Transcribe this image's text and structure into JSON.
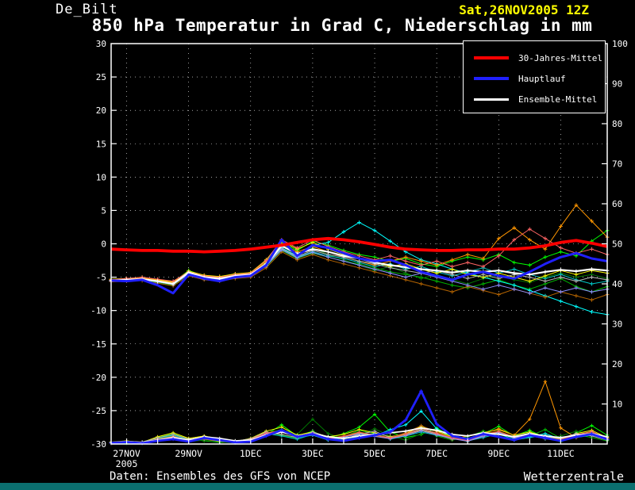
{
  "header": {
    "station": "De_Bilt",
    "run": "Sat,26NOV2005 12Z",
    "title": "850 hPa Temperatur in Grad C, Niederschlag in mm"
  },
  "footer": {
    "source": "Daten: Ensembles des GFS von NCEP",
    "brand": "Wetterzentrale"
  },
  "chart_data": {
    "type": "line",
    "title": "850 hPa Temperatur in Grad C, Niederschlag in mm",
    "x_step_hours": 12,
    "x_total_hours": 384,
    "x_ticks": [
      {
        "t": 12,
        "label": "27NOV",
        "sublabel": "2005"
      },
      {
        "t": 60,
        "label": "29NOV"
      },
      {
        "t": 108,
        "label": "1DEC"
      },
      {
        "t": 156,
        "label": "3DEC"
      },
      {
        "t": 204,
        "label": "5DEC"
      },
      {
        "t": 252,
        "label": "7DEC"
      },
      {
        "t": 300,
        "label": "9DEC"
      },
      {
        "t": 348,
        "label": "11DEC"
      }
    ],
    "axes": {
      "left": {
        "min": -30,
        "max": 30,
        "step": 5,
        "labels": [
          30,
          25,
          20,
          15,
          10,
          5,
          0,
          -5,
          -10,
          -15,
          -20,
          -25,
          -30
        ]
      },
      "right": {
        "min": 0,
        "max": 100,
        "step": 10,
        "labels": [
          100,
          90,
          80,
          70,
          60,
          50,
          40,
          30,
          20,
          10
        ]
      }
    },
    "legend": [
      {
        "label": "30-Jahres-Mittel",
        "color": "#ff0000"
      },
      {
        "label": "Hauptlauf",
        "color": "#2020ff"
      },
      {
        "label": "Ensemble-Mittel",
        "color": "#ffffff"
      }
    ],
    "temperature": {
      "climate_mean": [
        -0.8,
        -0.9,
        -1.0,
        -1.0,
        -1.1,
        -1.1,
        -1.2,
        -1.1,
        -1.0,
        -0.8,
        -0.5,
        -0.2,
        0.2,
        0.6,
        0.8,
        0.6,
        0.3,
        -0.1,
        -0.5,
        -0.8,
        -0.9,
        -1.0,
        -1.0,
        -0.9,
        -0.9,
        -0.8,
        -0.8,
        -0.6,
        -0.3,
        0.2,
        0.5,
        0.1,
        -0.4
      ],
      "main_run": [
        -5.5,
        -5.6,
        -5.4,
        -6.2,
        -7.4,
        -4.6,
        -5.2,
        -5.6,
        -5.0,
        -4.8,
        -3.2,
        0.6,
        -1.8,
        -0.2,
        -0.6,
        -1.4,
        -2.2,
        -2.6,
        -2.4,
        -3.2,
        -4.2,
        -4.8,
        -5.4,
        -4.6,
        -4.2,
        -4.8,
        -5.2,
        -4.2,
        -3.0,
        -2.0,
        -1.4,
        -2.2,
        -2.6
      ],
      "ensemble_mean": [
        -5.5,
        -5.4,
        -5.3,
        -5.6,
        -6.0,
        -4.3,
        -5.0,
        -5.2,
        -4.8,
        -4.6,
        -3.0,
        -0.3,
        -1.5,
        -0.8,
        -1.2,
        -1.8,
        -2.2,
        -2.8,
        -3.2,
        -3.5,
        -3.8,
        -4.0,
        -4.3,
        -4.0,
        -4.2,
        -4.0,
        -4.4,
        -4.6,
        -4.2,
        -3.9,
        -4.1,
        -3.8,
        -4.0
      ],
      "members": [
        {
          "color": "#00ff00",
          "values": [
            -5.5,
            -5.2,
            -5.0,
            -5.4,
            -5.8,
            -4.0,
            -4.8,
            -5.0,
            -4.6,
            -4.4,
            -2.6,
            0.2,
            -1.0,
            0.4,
            -0.2,
            -1.0,
            -1.6,
            -2.0,
            -2.6,
            -2.2,
            -3.0,
            -3.4,
            -2.6,
            -2.0,
            -2.4,
            -1.6,
            -2.8,
            -3.2,
            -2.0,
            -1.2,
            -1.8,
            0.4,
            2.0
          ]
        },
        {
          "color": "#00b400",
          "values": [
            -5.6,
            -5.5,
            -5.4,
            -5.8,
            -6.2,
            -4.6,
            -5.2,
            -5.4,
            -5.0,
            -4.8,
            -3.4,
            -1.0,
            -2.2,
            -1.4,
            -2.0,
            -2.6,
            -3.0,
            -3.6,
            -4.2,
            -4.6,
            -5.0,
            -5.6,
            -6.2,
            -6.6,
            -6.0,
            -5.4,
            -6.2,
            -6.8,
            -6.0,
            -5.2,
            -6.4,
            -7.2,
            -6.4
          ]
        },
        {
          "color": "#007800",
          "values": [
            -5.4,
            -5.3,
            -5.2,
            -5.5,
            -5.9,
            -4.2,
            -4.9,
            -5.1,
            -4.7,
            -4.5,
            -2.8,
            -0.2,
            -1.4,
            -0.6,
            -1.6,
            -2.4,
            -3.2,
            -4.0,
            -3.4,
            -4.4,
            -5.2,
            -4.6,
            -5.4,
            -6.0,
            -5.2,
            -4.8,
            -5.4,
            -5.8,
            -5.0,
            -4.4,
            -5.0,
            -4.6,
            -5.2
          ]
        },
        {
          "color": "#00ffff",
          "values": [
            -5.5,
            -5.4,
            -5.3,
            -5.7,
            -6.1,
            -4.4,
            -5.0,
            -5.3,
            -4.9,
            -4.7,
            -3.0,
            -0.6,
            -1.8,
            -0.2,
            0.2,
            1.8,
            3.2,
            2.0,
            0.4,
            -1.2,
            -2.4,
            -3.0,
            -3.8,
            -4.4,
            -5.0,
            -5.6,
            -6.2,
            -7.0,
            -7.8,
            -8.6,
            -9.4,
            -10.2,
            -10.6
          ]
        },
        {
          "color": "#00c8c8",
          "values": [
            -5.6,
            -5.4,
            -5.2,
            -5.6,
            -6.0,
            -4.5,
            -5.1,
            -5.2,
            -4.8,
            -4.6,
            -3.2,
            -0.8,
            -2.0,
            -1.2,
            -1.8,
            -2.2,
            -2.8,
            -3.4,
            -3.0,
            -3.8,
            -3.4,
            -4.2,
            -4.8,
            -4.2,
            -3.6,
            -4.4,
            -3.8,
            -4.6,
            -5.2,
            -4.6,
            -5.4,
            -6.0,
            -5.6
          ]
        },
        {
          "color": "#ffff00",
          "values": [
            -5.3,
            -5.2,
            -5.1,
            -5.4,
            -5.7,
            -4.1,
            -4.7,
            -4.9,
            -4.5,
            -4.3,
            -2.4,
            0.4,
            -0.8,
            0.2,
            -0.8,
            -1.6,
            -2.2,
            -2.8,
            -3.4,
            -3.0,
            -3.8,
            -4.4,
            -3.8,
            -4.6,
            -5.0,
            -4.4,
            -5.0,
            -5.6,
            -4.8,
            -4.0,
            -4.6,
            -4.0,
            -4.4
          ]
        },
        {
          "color": "#ff9600",
          "values": [
            -5.4,
            -5.3,
            -5.1,
            -5.5,
            -5.8,
            -4.3,
            -4.9,
            -5.1,
            -4.7,
            -4.5,
            -2.7,
            0.0,
            -1.2,
            -0.4,
            -1.2,
            -2.0,
            -2.6,
            -3.2,
            -2.6,
            -2.0,
            -2.6,
            -3.2,
            -2.4,
            -1.6,
            -2.2,
            0.8,
            2.4,
            0.6,
            -0.8,
            2.6,
            5.8,
            3.4,
            1.0
          ]
        },
        {
          "color": "#b46400",
          "values": [
            -5.7,
            -5.6,
            -5.5,
            -5.9,
            -6.3,
            -4.8,
            -5.4,
            -5.6,
            -5.2,
            -5.0,
            -3.6,
            -1.2,
            -2.4,
            -1.6,
            -2.4,
            -3.0,
            -3.6,
            -4.2,
            -4.8,
            -5.4,
            -6.0,
            -6.6,
            -7.2,
            -6.4,
            -7.0,
            -7.6,
            -6.8,
            -7.4,
            -8.0,
            -7.2,
            -7.8,
            -8.4,
            -7.6
          ]
        },
        {
          "color": "#b4b4b4",
          "values": [
            -5.5,
            -5.4,
            -5.2,
            -5.6,
            -5.9,
            -4.4,
            -5.0,
            -5.2,
            -4.8,
            -4.6,
            -3.1,
            -0.7,
            -1.9,
            -1.0,
            -1.6,
            -2.0,
            -2.6,
            -3.0,
            -3.6,
            -4.0,
            -4.4,
            -4.0,
            -4.6,
            -5.2,
            -4.6,
            -5.2,
            -4.6,
            -5.0,
            -5.6,
            -5.0,
            -5.6,
            -5.0,
            -5.4
          ]
        },
        {
          "color": "#8c8cff",
          "values": [
            -5.6,
            -5.5,
            -5.3,
            -5.7,
            -6.1,
            -4.6,
            -5.2,
            -5.4,
            -5.0,
            -4.8,
            -3.3,
            -0.9,
            -2.1,
            -1.3,
            -2.0,
            -2.6,
            -3.2,
            -3.8,
            -4.4,
            -5.0,
            -4.4,
            -5.0,
            -5.6,
            -6.2,
            -6.8,
            -6.2,
            -6.8,
            -7.4,
            -6.6,
            -7.2,
            -6.6,
            -7.2,
            -6.8
          ]
        },
        {
          "color": "#ff6464",
          "values": [
            -5.4,
            -5.2,
            -5.0,
            -5.3,
            -5.6,
            -4.2,
            -4.8,
            -5.0,
            -4.6,
            -4.4,
            -2.5,
            0.6,
            -0.6,
            0.6,
            -0.4,
            -1.2,
            -1.8,
            -2.4,
            -1.8,
            -2.6,
            -3.2,
            -2.6,
            -3.4,
            -2.8,
            -3.4,
            -1.8,
            0.6,
            2.2,
            0.8,
            -0.6,
            -1.4,
            -0.8,
            -1.6
          ]
        }
      ]
    },
    "precipitation": {
      "main_run": [
        0.3,
        0.5,
        0.2,
        0.8,
        1.2,
        0.6,
        1.5,
        1.0,
        0.4,
        0.6,
        2.0,
        3.5,
        1.8,
        2.5,
        1.2,
        0.8,
        1.5,
        2.2,
        3.0,
        6.0,
        13.2,
        5.0,
        2.0,
        1.2,
        2.5,
        1.8,
        1.0,
        2.2,
        1.5,
        0.8,
        1.8,
        2.5,
        1.2
      ],
      "ensemble_mean": [
        0.4,
        0.6,
        0.4,
        1.0,
        1.6,
        1.0,
        1.8,
        1.4,
        0.8,
        1.0,
        2.2,
        3.0,
        2.0,
        2.6,
        1.8,
        1.4,
        2.0,
        2.4,
        2.8,
        3.2,
        4.0,
        3.4,
        2.4,
        2.0,
        2.8,
        2.4,
        1.8,
        2.6,
        2.0,
        1.6,
        2.2,
        2.6,
        1.8
      ],
      "members": [
        {
          "color": "#00ff00",
          "values": [
            0.2,
            0.4,
            0.3,
            1.2,
            2.0,
            0.8,
            1.2,
            0.6,
            0.3,
            0.8,
            2.4,
            4.8,
            2.0,
            3.2,
            1.4,
            2.6,
            4.2,
            7.4,
            3.0,
            1.6,
            2.4,
            4.0,
            1.8,
            0.8,
            2.6,
            4.4,
            2.0,
            3.4,
            1.6,
            0.6,
            2.8,
            4.6,
            2.2
          ]
        },
        {
          "color": "#00b400",
          "values": [
            0.3,
            0.2,
            0.5,
            1.6,
            2.6,
            1.2,
            0.8,
            0.4,
            0.6,
            1.2,
            3.0,
            2.2,
            1.4,
            2.8,
            1.0,
            1.8,
            3.4,
            2.6,
            1.4,
            2.2,
            3.8,
            2.0,
            1.0,
            1.8,
            3.2,
            2.4,
            1.2,
            2.0,
            3.6,
            1.4,
            2.4,
            1.6,
            0.8
          ]
        },
        {
          "color": "#007800",
          "values": [
            0.2,
            0.3,
            0.4,
            1.0,
            1.8,
            0.6,
            1.0,
            0.8,
            0.4,
            1.4,
            2.8,
            3.6,
            2.4,
            6.2,
            2.6,
            1.2,
            2.2,
            3.8,
            2.0,
            1.0,
            2.6,
            3.4,
            1.6,
            0.6,
            2.2,
            3.0,
            1.8,
            2.8,
            1.2,
            2.0,
            3.2,
            2.4,
            1.0
          ]
        },
        {
          "color": "#00ffff",
          "values": [
            0.4,
            0.6,
            0.3,
            0.8,
            1.4,
            0.9,
            1.6,
            1.1,
            0.5,
            0.9,
            2.2,
            3.2,
            1.6,
            2.2,
            1.0,
            1.6,
            2.8,
            2.0,
            3.6,
            4.8,
            8.2,
            3.8,
            1.6,
            1.0,
            2.0,
            2.8,
            1.4,
            1.8,
            2.6,
            1.2,
            2.0,
            3.0,
            1.4
          ]
        },
        {
          "color": "#00c8c8",
          "values": [
            0.3,
            0.5,
            0.2,
            1.4,
            2.2,
            1.0,
            1.4,
            0.9,
            0.5,
            1.1,
            2.6,
            2.0,
            1.2,
            2.4,
            1.6,
            1.0,
            1.8,
            2.6,
            1.2,
            2.0,
            3.0,
            2.2,
            1.4,
            0.8,
            1.6,
            2.6,
            1.0,
            1.6,
            2.2,
            1.0,
            1.6,
            2.2,
            1.2
          ]
        },
        {
          "color": "#ffff00",
          "values": [
            0.5,
            0.8,
            0.4,
            1.8,
            2.8,
            1.4,
            2.0,
            1.2,
            0.6,
            1.4,
            3.2,
            4.2,
            2.2,
            3.0,
            1.8,
            2.4,
            3.6,
            2.8,
            1.8,
            2.6,
            4.4,
            3.2,
            1.8,
            1.2,
            2.8,
            3.6,
            2.2,
            3.0,
            1.8,
            1.2,
            2.6,
            3.4,
            1.6
          ]
        },
        {
          "color": "#ff9600",
          "values": [
            0.2,
            0.4,
            0.3,
            1.0,
            1.6,
            0.8,
            1.2,
            0.7,
            0.4,
            1.0,
            2.4,
            3.0,
            1.8,
            2.6,
            1.2,
            1.8,
            2.6,
            2.0,
            1.4,
            2.4,
            3.4,
            2.4,
            1.2,
            2.0,
            2.6,
            3.8,
            2.2,
            6.2,
            15.6,
            4.0,
            1.6,
            3.0,
            1.2
          ]
        },
        {
          "color": "#b46400",
          "values": [
            0.3,
            0.5,
            0.4,
            1.2,
            1.8,
            1.0,
            1.6,
            1.0,
            0.6,
            1.2,
            2.8,
            3.4,
            2.0,
            2.8,
            1.4,
            2.0,
            3.0,
            2.2,
            1.6,
            2.8,
            4.6,
            3.0,
            1.6,
            1.0,
            2.4,
            3.2,
            1.8,
            2.6,
            1.4,
            1.0,
            2.2,
            3.0,
            1.4
          ]
        },
        {
          "color": "#b4b4b4",
          "values": [
            0.4,
            0.7,
            0.5,
            1.5,
            2.4,
            1.2,
            1.8,
            1.1,
            0.7,
            1.3,
            3.0,
            2.4,
            1.6,
            3.0,
            1.8,
            1.2,
            2.4,
            3.2,
            1.6,
            2.4,
            3.6,
            2.6,
            1.4,
            0.9,
            2.0,
            3.0,
            1.6,
            2.4,
            1.8,
            1.4,
            2.6,
            2.0,
            1.0
          ]
        },
        {
          "color": "#8c8cff",
          "values": [
            0.2,
            0.4,
            0.3,
            0.9,
            1.5,
            0.7,
            1.3,
            0.8,
            0.4,
            1.0,
            2.5,
            3.1,
            1.7,
            2.3,
            1.1,
            1.7,
            2.5,
            1.9,
            1.3,
            2.1,
            3.3,
            2.3,
            1.3,
            0.7,
            1.9,
            2.7,
            1.5,
            2.1,
            1.3,
            0.9,
            1.9,
            2.7,
            1.1
          ]
        },
        {
          "color": "#ff6464",
          "values": [
            0.3,
            0.6,
            0.4,
            1.1,
            1.9,
            0.9,
            1.5,
            0.9,
            0.5,
            1.1,
            2.7,
            3.3,
            1.9,
            2.7,
            1.3,
            1.9,
            2.9,
            2.3,
            1.5,
            2.5,
            3.9,
            2.7,
            1.5,
            0.9,
            2.3,
            3.1,
            1.7,
            2.5,
            1.5,
            1.1,
            2.3,
            3.1,
            1.3
          ]
        }
      ]
    }
  }
}
